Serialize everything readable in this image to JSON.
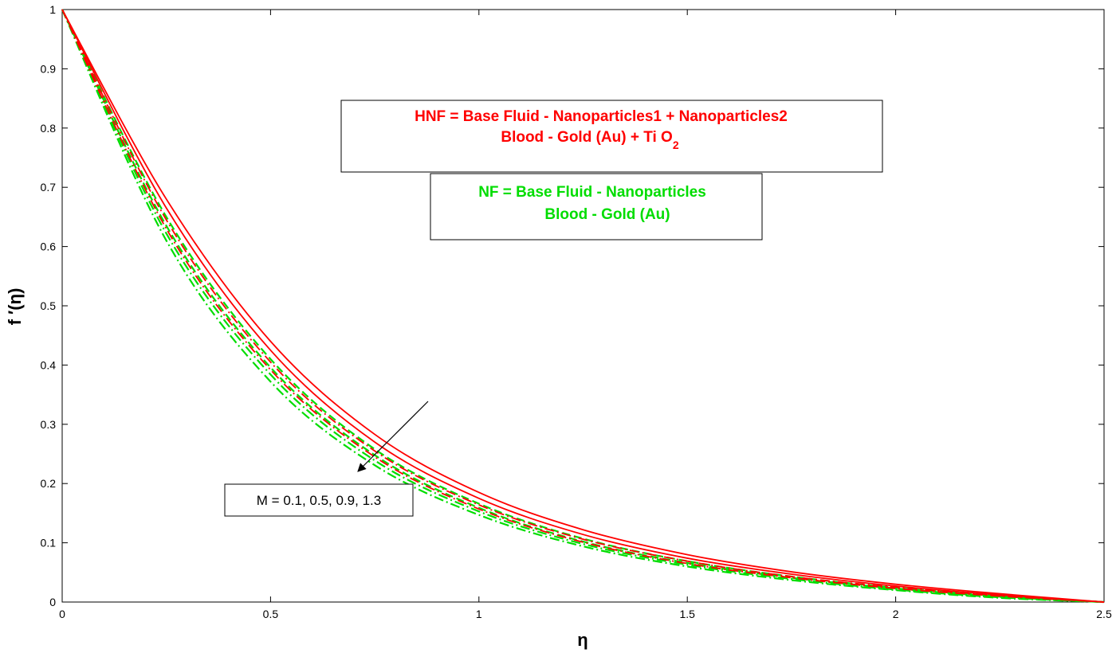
{
  "chart_data": {
    "type": "line",
    "title": "",
    "xlabel": "η",
    "ylabel": "f ′(η)",
    "xlim": [
      0,
      2.5
    ],
    "ylim": [
      0,
      1
    ],
    "xticks": [
      "0",
      "0.5",
      "1",
      "1.5",
      "2",
      "2.5"
    ],
    "yticks": [
      "0",
      "0.1",
      "0.2",
      "0.3",
      "0.4",
      "0.5",
      "0.6",
      "0.7",
      "0.8",
      "0.9",
      "1"
    ],
    "grid": false,
    "colors": {
      "hnf": "#ff0000",
      "nf": "#00dd00"
    },
    "x": [
      0,
      0.25,
      0.5,
      0.75,
      1.0,
      1.25,
      1.5,
      1.75,
      2.0,
      2.25,
      2.5
    ],
    "series": [
      {
        "group": "HNF",
        "style": "solid",
        "values": [
          1.0,
          0.68,
          0.44,
          0.283,
          0.185,
          0.122,
          0.08,
          0.051,
          0.03,
          0.014,
          0.0
        ]
      },
      {
        "group": "HNF",
        "style": "solid",
        "values": [
          1.0,
          0.665,
          0.425,
          0.27,
          0.175,
          0.114,
          0.074,
          0.047,
          0.027,
          0.012,
          0.0
        ]
      },
      {
        "group": "HNF",
        "style": "dashdot",
        "values": [
          1.0,
          0.645,
          0.405,
          0.255,
          0.164,
          0.106,
          0.069,
          0.043,
          0.025,
          0.011,
          0.0
        ]
      },
      {
        "group": "HNF",
        "style": "dashdot",
        "values": [
          1.0,
          0.63,
          0.392,
          0.245,
          0.157,
          0.101,
          0.065,
          0.041,
          0.023,
          0.01,
          0.0
        ]
      },
      {
        "group": "NF",
        "style": "dashed",
        "values": [
          1.0,
          0.65,
          0.41,
          0.258,
          0.166,
          0.107,
          0.069,
          0.043,
          0.024,
          0.01,
          0.0
        ]
      },
      {
        "group": "NF",
        "style": "dashed",
        "values": [
          1.0,
          0.635,
          0.396,
          0.248,
          0.159,
          0.102,
          0.066,
          0.041,
          0.023,
          0.009,
          0.0
        ]
      },
      {
        "group": "NF",
        "style": "dashdot",
        "values": [
          1.0,
          0.622,
          0.384,
          0.239,
          0.153,
          0.098,
          0.063,
          0.039,
          0.021,
          0.008,
          0.0
        ]
      },
      {
        "group": "NF",
        "style": "dashdot",
        "values": [
          1.0,
          0.61,
          0.372,
          0.231,
          0.147,
          0.094,
          0.06,
          0.037,
          0.02,
          0.007,
          0.0
        ]
      }
    ],
    "annotations": {
      "hnf_line1": "HNF = Base Fluid - Nanoparticles1 + Nanoparticles2",
      "hnf_line2_main": "Blood - Gold (Au) + Ti O",
      "hnf_line2_sub": "2",
      "nf_line1": "NF = Base Fluid - Nanoparticles",
      "nf_line2": "Blood - Gold (Au)",
      "param": "M = 0.1, 0.5, 0.9, 1.3"
    }
  }
}
